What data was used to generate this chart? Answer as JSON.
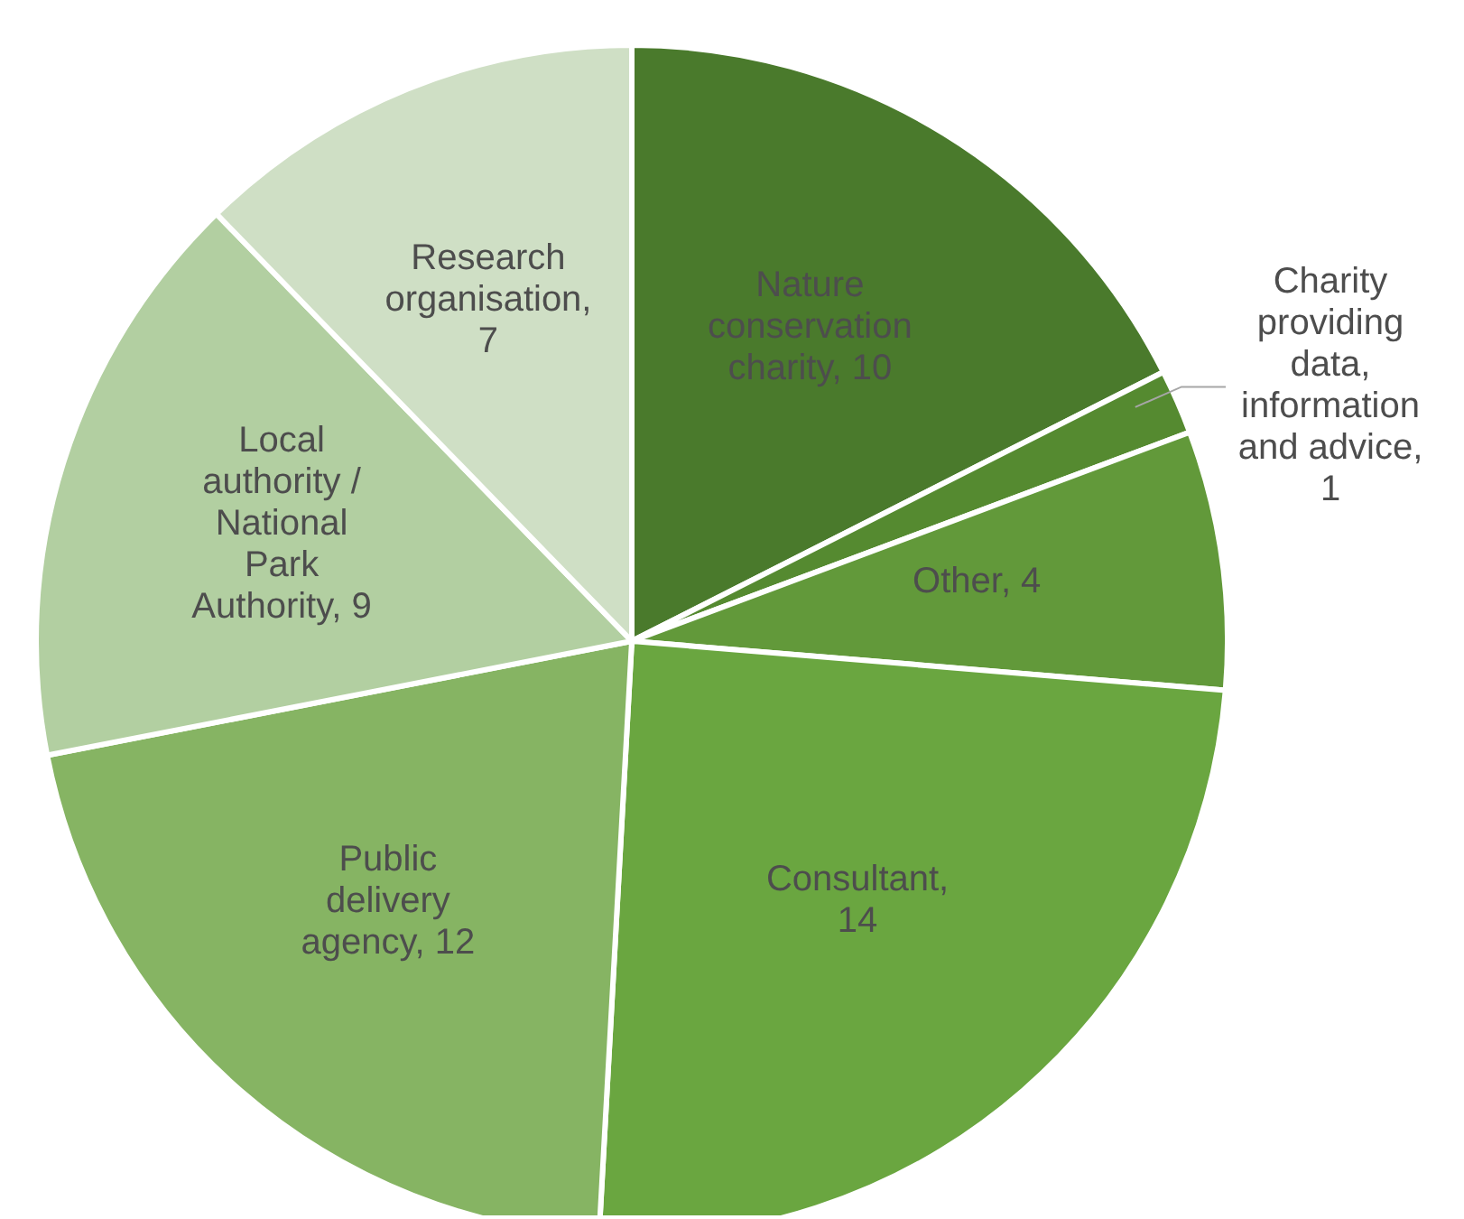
{
  "chart_data": {
    "type": "pie",
    "categories": [
      "Nature conservation charity",
      "Charity providing data, information and advice",
      "Other",
      "Consultant",
      "Public delivery agency",
      "Local authority / National Park Authority",
      "Research organisation"
    ],
    "values": [
      10,
      1,
      4,
      14,
      12,
      9,
      7
    ],
    "colors": [
      "#4a7a2c",
      "#558a30",
      "#62993a",
      "#6aa640",
      "#86b463",
      "#b2cfa1",
      "#cfdfc5"
    ],
    "value_labels": [
      ", 10",
      ", 1",
      ", 4",
      ", 14",
      ", 12",
      ", 9",
      ", 7"
    ]
  }
}
